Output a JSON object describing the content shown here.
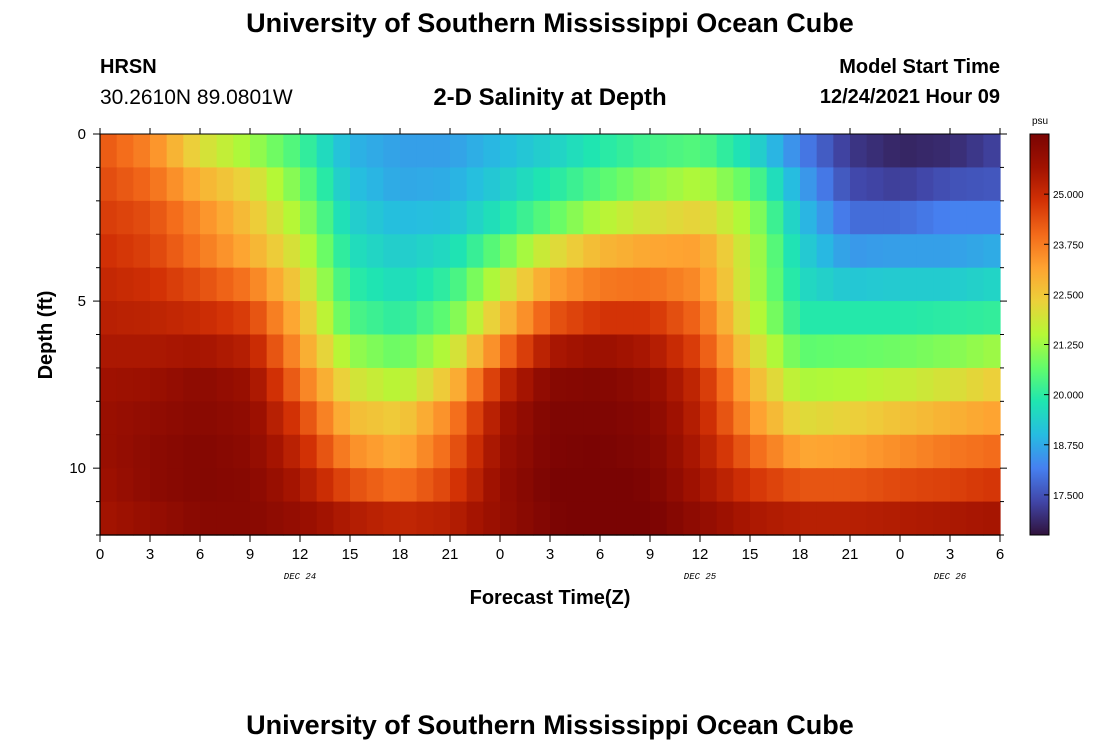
{
  "header": {
    "title": "University of Southern Mississippi Ocean Cube",
    "station_name": "HRSN",
    "station_coords": "30.2610N  89.0801W",
    "plot_title": "2-D Salinity at Depth",
    "start_label": "Model Start Time",
    "start_value": "12/24/2021 Hour 09"
  },
  "footer": {
    "title": "University of Southern Mississippi Ocean Cube"
  },
  "chart_data": {
    "type": "heatmap",
    "title": "2-D Salinity at Depth",
    "xlabel": "Forecast Time(Z)",
    "ylabel": "Depth (ft)",
    "x_tick_labels": [
      "0",
      "3",
      "6",
      "9",
      "12",
      "15",
      "18",
      "21",
      "0",
      "3",
      "6",
      "9",
      "12",
      "15",
      "18",
      "21",
      "0",
      "3",
      "6"
    ],
    "day_labels": [
      {
        "label": "DEC 24",
        "at_hours": 12
      },
      {
        "label": "DEC 25",
        "at_hours": 36
      },
      {
        "label": "DEC 26",
        "at_hours": 51
      }
    ],
    "x_range_hours": [
      0,
      54
    ],
    "y_tick_labels": [
      "0",
      "5",
      "10"
    ],
    "y_range_ft": [
      0,
      12
    ],
    "colorbar": {
      "unit": "psu",
      "range": [
        16.5,
        26.5
      ],
      "tick_labels": [
        "25.000",
        "23.750",
        "22.500",
        "21.250",
        "20.000",
        "18.750",
        "17.500"
      ],
      "colors": [
        "#30123b",
        "#4146a8",
        "#4680f0",
        "#26bce1",
        "#1fe6b0",
        "#62fc6b",
        "#b5f836",
        "#ecd03a",
        "#fea331",
        "#f36a1a",
        "#d23105",
        "#a11201",
        "#7a0403"
      ]
    },
    "depth_levels_ft": [
      0.5,
      1.5,
      2.5,
      3.5,
      4.5,
      5.5,
      6.5,
      7.5,
      8.5,
      9.5,
      10.5,
      11.5
    ],
    "salinity_profile_hours": [
      0,
      3,
      6,
      9,
      12,
      15,
      18,
      21,
      24,
      27,
      30,
      33,
      36,
      39,
      42,
      45,
      48,
      51,
      54
    ],
    "salinity_psu": [
      [
        24.3,
        23.6,
        22.1,
        21.3,
        20.3,
        18.9,
        18.6,
        18.6,
        19.0,
        19.4,
        19.9,
        20.3,
        20.5,
        19.6,
        18.2,
        17.1,
        16.8,
        16.9,
        17.3
      ],
      [
        24.5,
        24.0,
        22.9,
        22.2,
        20.8,
        19.1,
        18.7,
        18.8,
        19.3,
        19.9,
        20.5,
        21.1,
        21.5,
        20.6,
        18.7,
        17.4,
        17.2,
        17.5,
        17.6
      ],
      [
        24.7,
        24.4,
        23.5,
        22.6,
        21.3,
        19.4,
        19.0,
        19.1,
        19.8,
        20.6,
        21.5,
        22.0,
        22.3,
        21.3,
        19.1,
        17.9,
        17.9,
        18.2,
        18.2
      ],
      [
        24.9,
        24.6,
        23.8,
        23.0,
        21.8,
        19.7,
        19.3,
        19.6,
        20.7,
        22.0,
        22.8,
        23.1,
        23.2,
        21.6,
        19.4,
        18.5,
        18.6,
        18.6,
        18.8
      ],
      [
        25.1,
        24.9,
        24.4,
        23.8,
        22.3,
        20.0,
        19.6,
        20.1,
        21.7,
        23.2,
        23.8,
        23.9,
        23.5,
        21.6,
        19.6,
        19.2,
        19.3,
        19.3,
        19.5
      ],
      [
        25.3,
        25.2,
        25.0,
        24.6,
        22.8,
        20.4,
        20.0,
        20.7,
        22.6,
        24.3,
        24.8,
        24.8,
        24.0,
        21.8,
        19.9,
        19.9,
        19.9,
        20.0,
        20.1
      ],
      [
        25.5,
        25.5,
        25.6,
        25.3,
        23.3,
        21.2,
        20.7,
        21.6,
        23.8,
        25.5,
        25.8,
        25.5,
        24.5,
        22.3,
        20.6,
        20.7,
        20.8,
        21.0,
        21.3
      ],
      [
        25.7,
        25.8,
        26.1,
        25.8,
        23.9,
        22.0,
        21.5,
        22.6,
        25.0,
        26.2,
        26.3,
        26.0,
        25.0,
        22.9,
        21.4,
        21.5,
        21.7,
        22.0,
        22.4
      ],
      [
        25.8,
        26.0,
        26.2,
        26.0,
        24.6,
        22.7,
        22.4,
        23.6,
        25.6,
        26.4,
        26.4,
        26.2,
        25.2,
        23.4,
        22.1,
        22.3,
        22.6,
        22.9,
        23.2
      ],
      [
        25.8,
        26.1,
        26.3,
        26.1,
        25.1,
        23.5,
        23.0,
        24.1,
        25.8,
        26.4,
        26.5,
        26.3,
        25.4,
        24.1,
        23.1,
        23.2,
        23.5,
        23.8,
        24.0
      ],
      [
        25.7,
        26.1,
        26.3,
        26.2,
        25.5,
        24.4,
        23.9,
        24.6,
        25.9,
        26.5,
        26.6,
        26.4,
        25.6,
        24.8,
        24.3,
        24.3,
        24.5,
        24.6,
        24.8
      ],
      [
        25.6,
        25.9,
        26.2,
        26.2,
        25.9,
        25.4,
        25.1,
        25.3,
        25.9,
        26.4,
        26.7,
        26.5,
        26.0,
        25.5,
        25.3,
        25.3,
        25.4,
        25.5,
        25.6
      ]
    ]
  }
}
